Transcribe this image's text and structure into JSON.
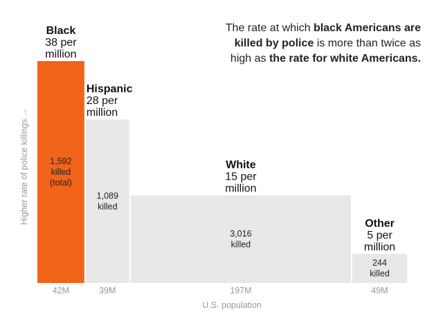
{
  "chart_data": {
    "type": "bar",
    "subtype": "variable-width",
    "annotation": [
      {
        "text": "The rate at which ",
        "bold": false
      },
      {
        "text": "black Americans are killed by police",
        "bold": true
      },
      {
        "text": " is more than twice as high as ",
        "bold": false
      },
      {
        "text": "the rate for white Americans.",
        "bold": true
      }
    ],
    "ylabel": "Higher rate of police killings →",
    "xlabel": "U.S. population",
    "width_unit": "population (millions)",
    "height_unit": "killings per million",
    "series": [
      {
        "name": "Black",
        "rate": 38,
        "rate_label": [
          "38 per",
          "million"
        ],
        "population": 42,
        "population_label": "42M",
        "killed_label": [
          "1,592",
          "killed",
          "(total)"
        ],
        "color": "#f26419",
        "text_color": "#222222",
        "label_align": "center"
      },
      {
        "name": "Hispanic",
        "rate": 28,
        "rate_label": [
          "28 per",
          "million"
        ],
        "population": 39,
        "population_label": "39M",
        "killed_label": [
          "1,089",
          "killed"
        ],
        "color": "#e8e8e8",
        "text_color": "#222222",
        "label_align": "left"
      },
      {
        "name": "White",
        "rate": 15,
        "rate_label": [
          "15 per",
          "million"
        ],
        "population": 197,
        "population_label": "197M",
        "killed_label": [
          "3,016",
          "killed"
        ],
        "color": "#e8e8e8",
        "text_color": "#222222",
        "label_align": "center"
      },
      {
        "name": "Other",
        "rate": 5,
        "rate_label": [
          "5 per",
          "million"
        ],
        "population": 49,
        "population_label": "49M",
        "killed_label": [
          "244",
          "killed"
        ],
        "color": "#e8e8e8",
        "text_color": "#222222",
        "label_align": "center"
      }
    ],
    "grid": false,
    "legend": "none"
  }
}
